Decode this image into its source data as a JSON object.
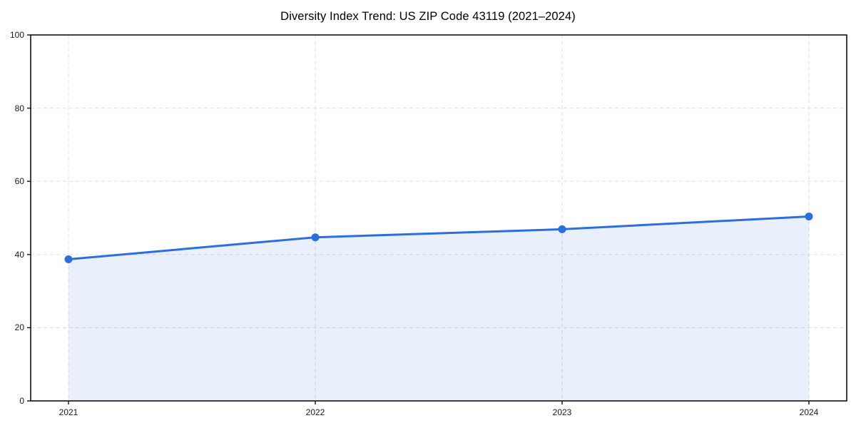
{
  "title": "Diversity Index Trend: US ZIP Code 43119 (2021–2024)",
  "colors": {
    "line": "#2a6ee0",
    "marker": "#2a6ee0",
    "area_fill": "rgba(42,110,224,0.10)",
    "grid": "#e2e2e2",
    "axis": "#111111",
    "tick_text": "#1a1a1a",
    "background": "#ffffff"
  },
  "chart_data": {
    "type": "area",
    "title": "Diversity Index Trend: US ZIP Code 43119 (2021–2024)",
    "categories": [
      "2021",
      "2022",
      "2023",
      "2024"
    ],
    "x": [
      2021,
      2022,
      2023,
      2024
    ],
    "series": [
      {
        "name": "Diversity Index",
        "values": [
          38.7,
          44.7,
          46.9,
          50.4
        ]
      }
    ],
    "xlabel": "",
    "ylabel": "",
    "ylim": [
      0,
      100
    ],
    "yticks": [
      0,
      20,
      40,
      60,
      80,
      100
    ],
    "grid": true,
    "grid_style": "dashed",
    "legend_position": "none",
    "marker": "circle",
    "line_width": 3,
    "fill_to_zero": true
  }
}
